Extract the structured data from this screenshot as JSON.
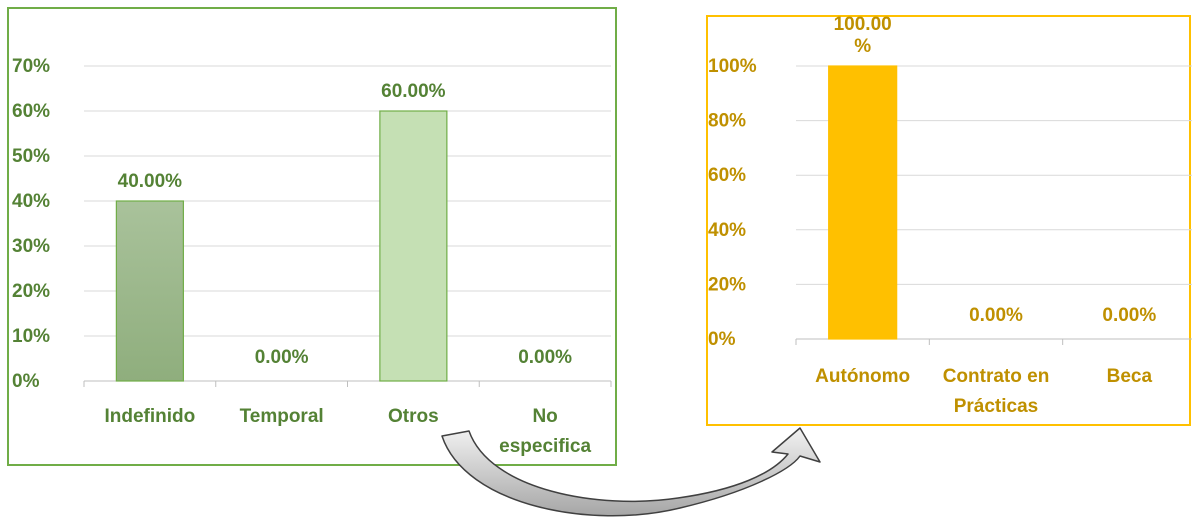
{
  "colors": {
    "left_frame": "#70ad47",
    "left_text": "#548235",
    "left_bar_fill_top": "#a9c29b",
    "left_bar_fill_bottom": "#8fae7d",
    "left_bar_light": "#c5e0b4",
    "right_frame": "#ffc000",
    "right_text": "#bf9000",
    "right_bar": "#ffc000",
    "grid": "#d9d9d9",
    "arrow_fill_top": "#f2f2f2",
    "arrow_fill_bottom": "#a6a6a6",
    "arrow_stroke": "#404040"
  },
  "arrow_icon": "curved-arrow-icon",
  "chart_data": [
    {
      "type": "bar",
      "categories": [
        "Indefinido",
        "Temporal",
        "Otros",
        "No especifica"
      ],
      "values": [
        40,
        0,
        60,
        0
      ],
      "data_labels": [
        "40.00%",
        "0.00%",
        "60.00%",
        "0.00%"
      ],
      "yticks": [
        "0%",
        "10%",
        "20%",
        "30%",
        "40%",
        "50%",
        "60%",
        "70%"
      ],
      "ylim": [
        0,
        70
      ],
      "grid": true,
      "legend": "none"
    },
    {
      "type": "bar",
      "categories": [
        "Autónomo",
        "Contrato en Prácticas",
        "Beca"
      ],
      "values": [
        100,
        0,
        0
      ],
      "data_labels": [
        "100.00 %",
        "0.00%",
        "0.00%"
      ],
      "yticks": [
        "0%",
        "20%",
        "40%",
        "60%",
        "80%",
        "100%"
      ],
      "ylim": [
        0,
        100
      ],
      "grid": true,
      "legend": "none"
    }
  ]
}
